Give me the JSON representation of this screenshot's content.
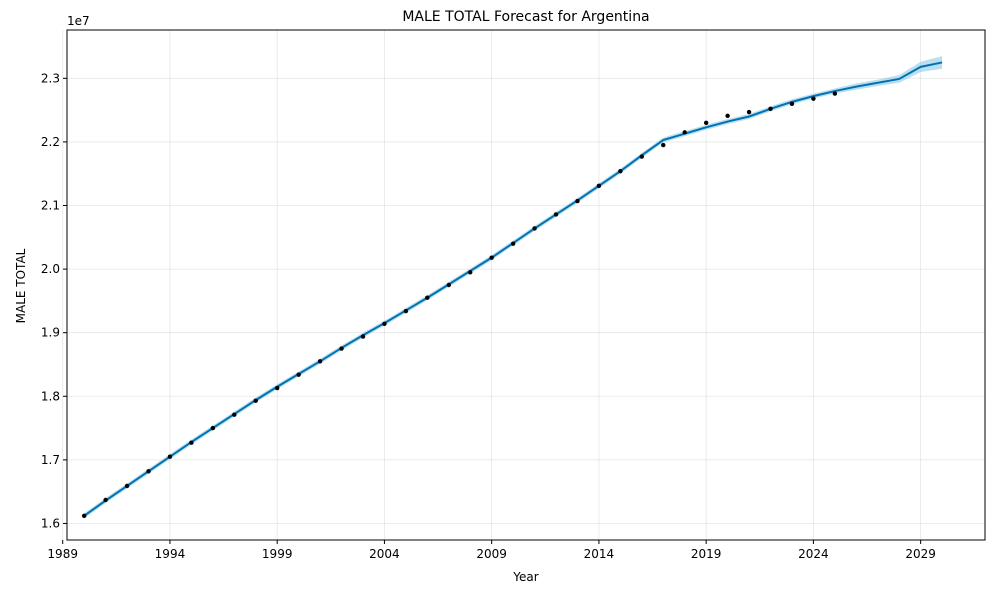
{
  "chart_data": {
    "type": "line",
    "title": "MALE TOTAL Forecast for Argentina",
    "xlabel": "Year",
    "ylabel": "MALE TOTAL",
    "y_offset_label": "1e7",
    "xlim": [
      1989.2,
      2032.0
    ],
    "ylim": [
      15740000,
      23760000
    ],
    "x_ticks": [
      1989,
      1994,
      1999,
      2004,
      2009,
      2014,
      2019,
      2024,
      2029
    ],
    "x_tick_labels": [
      "1989",
      "1994",
      "1999",
      "2004",
      "2009",
      "2014",
      "2019",
      "2024",
      "2029"
    ],
    "y_ticks": [
      16000000,
      17000000,
      18000000,
      19000000,
      20000000,
      21000000,
      22000000,
      23000000
    ],
    "y_tick_labels": [
      "1.6",
      "1.7",
      "1.8",
      "1.9",
      "2.0",
      "2.1",
      "2.2",
      "2.3"
    ],
    "grid": true,
    "colors": {
      "forecast_line": "#0072B2",
      "interval_fill": "#8ecae6",
      "observed_points": "#000000",
      "grid": "#b0b0b0"
    },
    "series": [
      {
        "kind": "observed",
        "x": [
          1990,
          1991,
          1992,
          1993,
          1994,
          1995,
          1996,
          1997,
          1998,
          1999,
          2000,
          2001,
          2002,
          2003,
          2004,
          2005,
          2006,
          2007,
          2008,
          2009,
          2010,
          2011,
          2012,
          2013,
          2014,
          2015,
          2016,
          2017,
          2018,
          2019,
          2020,
          2021,
          2022,
          2023,
          2024,
          2025
        ],
        "y": [
          16120000,
          16370000,
          16590000,
          16820000,
          17050000,
          17270000,
          17500000,
          17710000,
          17930000,
          18130000,
          18340000,
          18550000,
          18750000,
          18940000,
          19140000,
          19340000,
          19550000,
          19750000,
          19950000,
          20180000,
          20400000,
          20640000,
          20860000,
          21070000,
          21310000,
          21540000,
          21770000,
          21950000,
          22150000,
          22300000,
          22410000,
          22470000,
          22520000,
          22600000,
          22680000,
          22760000
        ]
      },
      {
        "kind": "forecast",
        "x": [
          1990,
          1991,
          1992,
          1993,
          1994,
          1995,
          1996,
          1997,
          1998,
          1999,
          2000,
          2001,
          2002,
          2003,
          2004,
          2005,
          2006,
          2007,
          2008,
          2009,
          2010,
          2011,
          2012,
          2013,
          2014,
          2015,
          2016,
          2017,
          2018,
          2019,
          2020,
          2021,
          2022,
          2023,
          2024,
          2025,
          2026,
          2027,
          2028,
          2029,
          2030
        ],
        "y": [
          16120000,
          16360000,
          16590000,
          16820000,
          17050000,
          17280000,
          17500000,
          17720000,
          17940000,
          18150000,
          18350000,
          18550000,
          18760000,
          18960000,
          19150000,
          19350000,
          19550000,
          19760000,
          19970000,
          20180000,
          20410000,
          20640000,
          20860000,
          21080000,
          21310000,
          21540000,
          21790000,
          22030000,
          22130000,
          22230000,
          22320000,
          22400000,
          22520000,
          22630000,
          22720000,
          22800000,
          22870000,
          22930000,
          22990000,
          23180000,
          23250000
        ]
      },
      {
        "kind": "interval",
        "x": [
          1990,
          1991,
          1992,
          1993,
          1994,
          1995,
          1996,
          1997,
          1998,
          1999,
          2000,
          2001,
          2002,
          2003,
          2004,
          2005,
          2006,
          2007,
          2008,
          2009,
          2010,
          2011,
          2012,
          2013,
          2014,
          2015,
          2016,
          2017,
          2018,
          2019,
          2020,
          2021,
          2022,
          2023,
          2024,
          2025,
          2026,
          2027,
          2028,
          2029,
          2030
        ],
        "lower": [
          16080000,
          16320000,
          16550000,
          16780000,
          17010000,
          17240000,
          17460000,
          17680000,
          17900000,
          18110000,
          18310000,
          18510000,
          18720000,
          18920000,
          19110000,
          19310000,
          19510000,
          19720000,
          19930000,
          20140000,
          20370000,
          20600000,
          20820000,
          21040000,
          21270000,
          21500000,
          21750000,
          21990000,
          22090000,
          22190000,
          22280000,
          22360000,
          22480000,
          22590000,
          22680000,
          22760000,
          22820000,
          22880000,
          22930000,
          23100000,
          23150000
        ],
        "upper": [
          16160000,
          16400000,
          16630000,
          16860000,
          17090000,
          17320000,
          17540000,
          17760000,
          17980000,
          18190000,
          18390000,
          18590000,
          18800000,
          19000000,
          19190000,
          19390000,
          19590000,
          19800000,
          20010000,
          20220000,
          20450000,
          20680000,
          20900000,
          21120000,
          21350000,
          21580000,
          21830000,
          22070000,
          22170000,
          22270000,
          22360000,
          22440000,
          22560000,
          22670000,
          22760000,
          22840000,
          22920000,
          22980000,
          23050000,
          23260000,
          23350000
        ]
      }
    ]
  }
}
